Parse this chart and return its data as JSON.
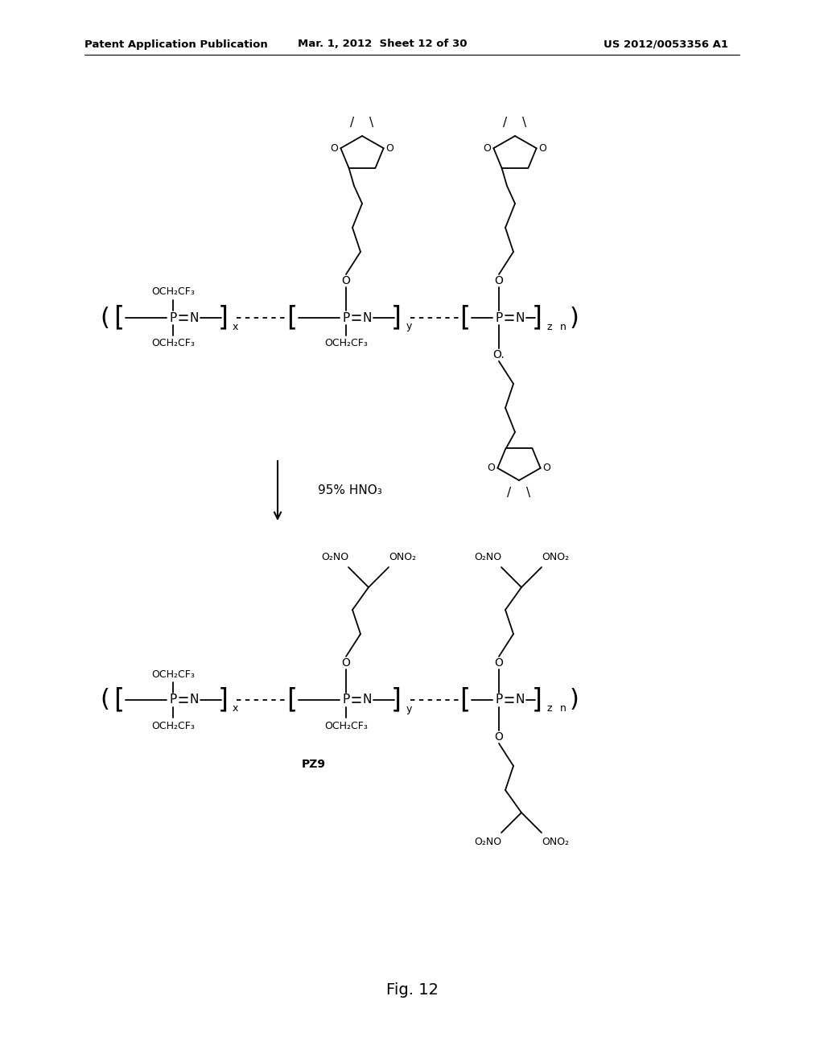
{
  "header_left": "Patent Application Publication",
  "header_mid": "Mar. 1, 2012  Sheet 12 of 30",
  "header_right": "US 2012/0053356 A1",
  "fig_label": "Fig. 12",
  "reaction_label": "95% HNO₃",
  "pz_label": "PZ9",
  "background": "#ffffff",
  "line_color": "#000000"
}
